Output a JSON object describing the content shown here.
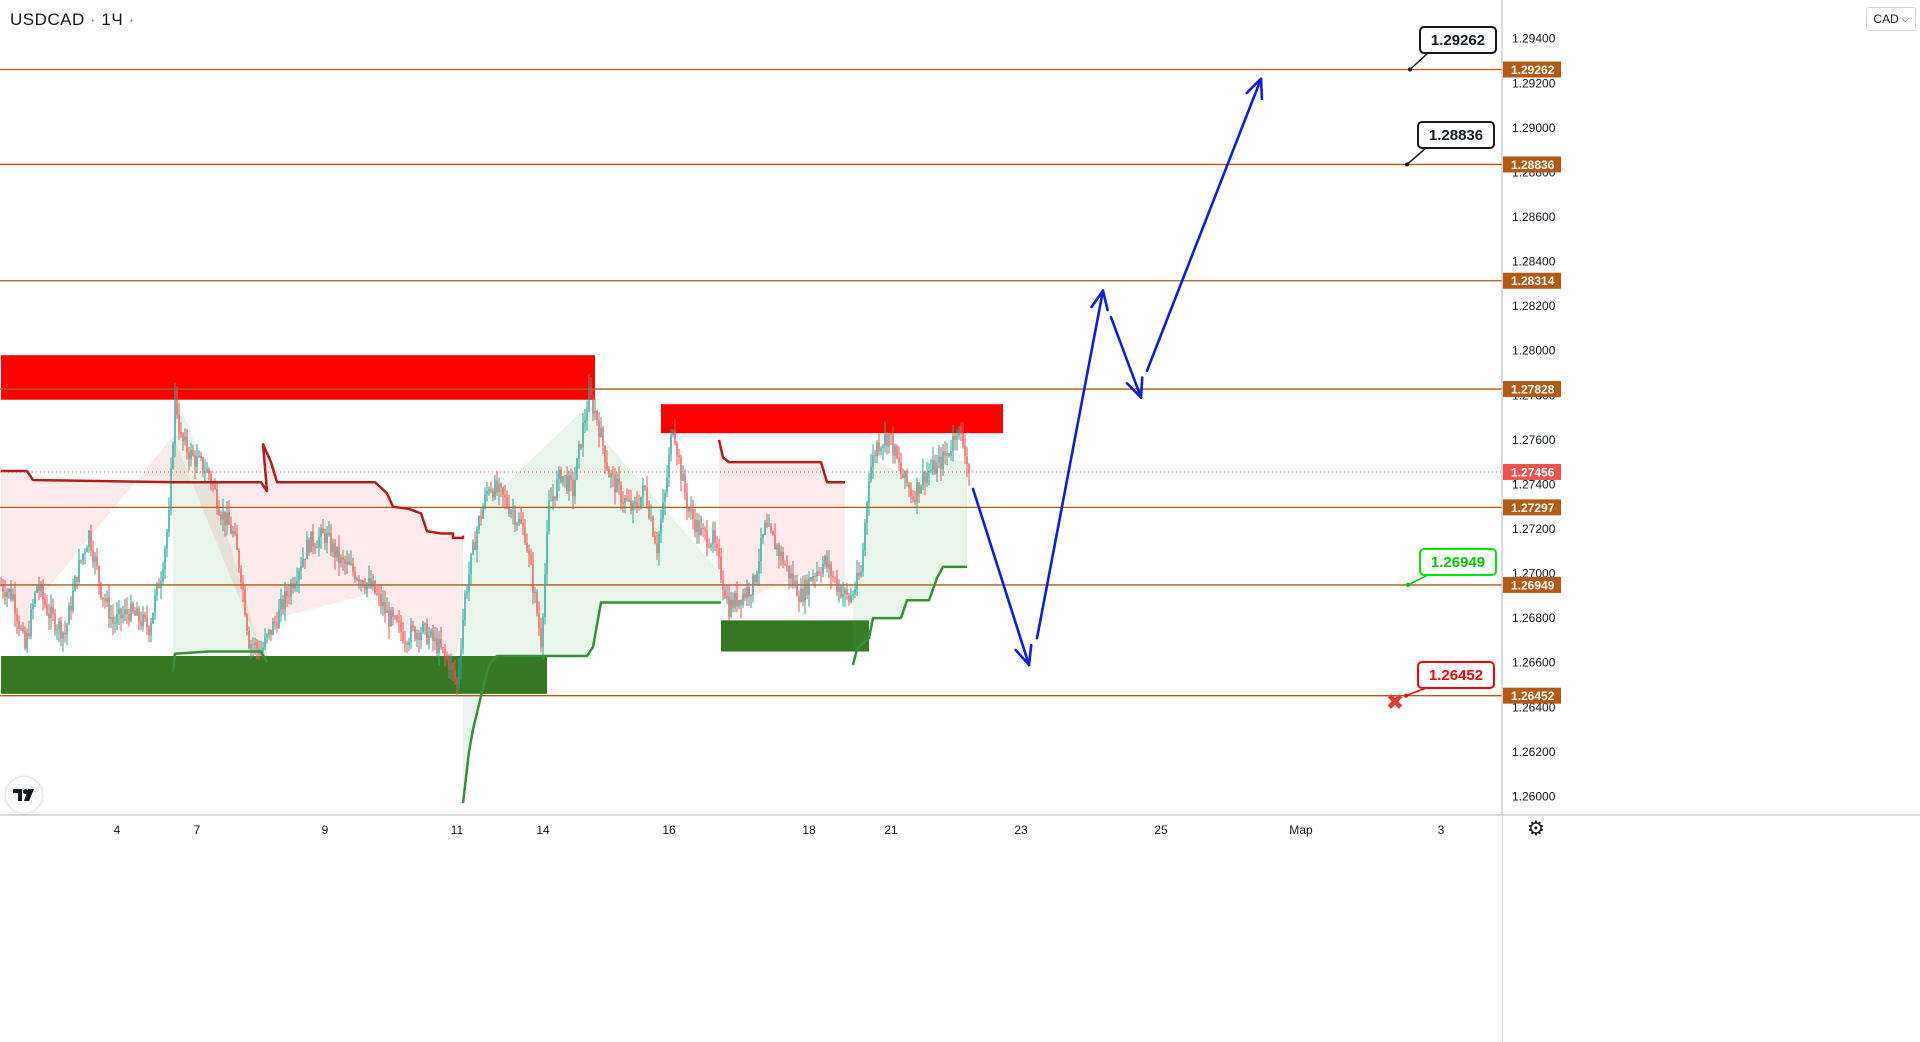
{
  "header": {
    "symbol": "USDCAD",
    "interval": "1Ч",
    "currency": "CAD"
  },
  "icons": {
    "logo": "tradingview-logo-icon",
    "settings": "gear-icon",
    "currency_dropdown": "chevron-down-icon",
    "stop": "x-mark-icon"
  },
  "colors": {
    "level_line": "#b05a12",
    "level_label_bg": "#b35a14",
    "current_price_bg": "#ef5350",
    "resistance_zone": "#ff0000",
    "support_zone": "#367723",
    "forecast_path": "#0d1fd9",
    "bull_candle": "#26a69a",
    "bear_candle": "#ef5350",
    "trail_red": "#b71c1c",
    "trail_green": "#388e3c"
  },
  "chart_data": {
    "type": "candlestick",
    "timeframe": "1Ч",
    "yaxis": {
      "min": 1.2593,
      "max": 1.2952,
      "ticks": [
        "1.29400",
        "1.29200",
        "1.29000",
        "1.28800",
        "1.28600",
        "1.28400",
        "1.28200",
        "1.28000",
        "1.27800",
        "1.27600",
        "1.27400",
        "1.27200",
        "1.27000",
        "1.26800",
        "1.26600",
        "1.26400",
        "1.26200",
        "1.26000"
      ]
    },
    "xaxis": {
      "ticks": [
        {
          "label": "4",
          "bar": 0
        },
        {
          "label": "7",
          "bar": 40
        },
        {
          "label": "9",
          "bar": 104
        },
        {
          "label": "11",
          "bar": 170
        },
        {
          "label": "14",
          "bar": 213
        },
        {
          "label": "16",
          "bar": 276
        },
        {
          "label": "18",
          "bar": 346
        },
        {
          "label": "21",
          "bar": 387
        },
        {
          "label": "23",
          "bar": 452
        },
        {
          "label": "25",
          "bar": 522
        },
        {
          "label": "Мар",
          "bar": 592
        },
        {
          "label": "3",
          "bar": 662
        }
      ],
      "bar_width_days_note": ""
    },
    "current_price": "1.27456",
    "levels": [
      "1.29262",
      "1.28836",
      "1.28314",
      "1.27828",
      "1.27297",
      "1.26949",
      "1.26452"
    ],
    "callouts": [
      {
        "text": "1.29262",
        "style": "target"
      },
      {
        "text": "1.28836",
        "style": "target"
      },
      {
        "text": "1.26949",
        "style": "entry"
      },
      {
        "text": "1.26452",
        "style": "stop"
      }
    ],
    "zones": [
      {
        "kind": "resistance",
        "from_bar": -58,
        "to_bar": 239,
        "top": 1.2798,
        "bottom": 1.2778
      },
      {
        "kind": "resistance",
        "from_bar": 272,
        "to_bar": 443,
        "top": 1.2776,
        "bottom": 1.2763
      },
      {
        "kind": "support",
        "from_bar": -58,
        "to_bar": 215,
        "top": 1.2663,
        "bottom": 1.2646
      },
      {
        "kind": "support",
        "from_bar": 302,
        "to_bar": 376,
        "top": 1.2679,
        "bottom": 1.2665
      }
    ],
    "trail_red": [
      [
        -58,
        1.2746
      ],
      [
        -45,
        1.2746
      ],
      [
        -42,
        1.2742
      ],
      [
        28,
        1.2741
      ],
      [
        28,
        1.2741
      ],
      [
        72,
        1.2741
      ],
      [
        75,
        1.2737
      ],
      [
        73,
        1.2758
      ],
      [
        77,
        1.275
      ],
      [
        80,
        1.2741
      ],
      [
        129,
        1.2741
      ],
      [
        135,
        1.2736
      ],
      [
        138,
        1.273
      ],
      [
        146,
        1.2729
      ],
      [
        152,
        1.2727
      ],
      [
        155,
        1.2719
      ],
      [
        162,
        1.2718
      ],
      [
        168,
        1.2718
      ],
      [
        168,
        1.2716
      ],
      [
        173,
        1.2716
      ],
      [
        173,
        1.2717
      ]
    ],
    "trail_red_2": [
      [
        301,
        1.276
      ],
      [
        303,
        1.2752
      ],
      [
        306,
        1.275
      ],
      [
        352,
        1.275
      ],
      [
        355,
        1.2741
      ],
      [
        364,
        1.2741
      ]
    ],
    "trail_green": [
      [
        28,
        1.2656
      ],
      [
        29,
        1.2664
      ],
      [
        46,
        1.2665
      ],
      [
        72,
        1.2665
      ],
      [
        75,
        1.266
      ]
    ],
    "trail_green_2": [
      [
        173,
        1.2597
      ],
      [
        176,
        1.262
      ],
      [
        178,
        1.263
      ],
      [
        182,
        1.2645
      ],
      [
        186,
        1.2659
      ],
      [
        190,
        1.2663
      ],
      [
        235,
        1.2663
      ],
      [
        238,
        1.2667
      ],
      [
        242,
        1.2687
      ],
      [
        302,
        1.2687
      ]
    ],
    "trail_green_3": [
      [
        368,
        1.2659
      ],
      [
        370,
        1.2666
      ],
      [
        372,
        1.2668
      ],
      [
        376,
        1.2671
      ],
      [
        378,
        1.268
      ],
      [
        392,
        1.268
      ],
      [
        395,
        1.2688
      ],
      [
        406,
        1.2688
      ],
      [
        410,
        1.2698
      ],
      [
        413,
        1.2703
      ],
      [
        425,
        1.2703
      ]
    ],
    "forecast_path": [
      [
        428,
        1.2738
      ],
      [
        456,
        1.2659
      ],
      [
        493,
        1.2827
      ],
      [
        512,
        1.2779
      ],
      [
        572,
        1.2922
      ]
    ],
    "forecast_anchors": {
      "start": 428,
      "dip_start": 430,
      "low": 456,
      "high": 493,
      "pullback": 512,
      "target": 572
    }
  }
}
